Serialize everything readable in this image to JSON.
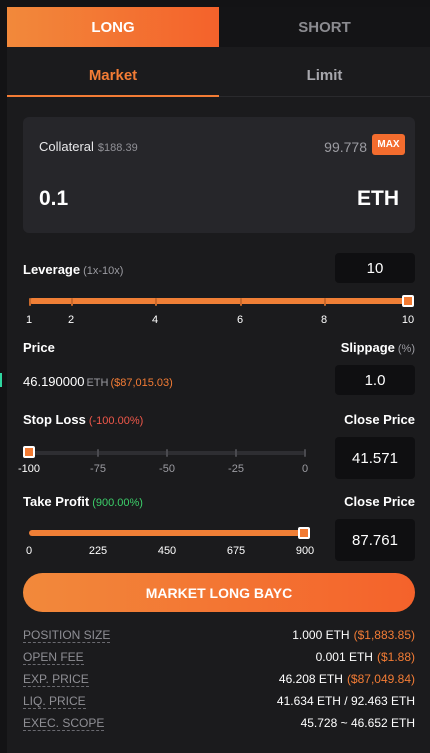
{
  "side_tabs": {
    "long": "LONG",
    "short": "SHORT"
  },
  "order_tabs": {
    "market": "Market",
    "limit": "Limit"
  },
  "collateral": {
    "label": "Collateral",
    "usd": "$188.39",
    "balance": "99.778",
    "max_label": "MAX",
    "amount": "0.1",
    "token": "ETH"
  },
  "leverage": {
    "label": "Leverage",
    "range": "(1x-10x)",
    "value": "10",
    "ticks": [
      "1",
      "2",
      "4",
      "6",
      "8",
      "10"
    ]
  },
  "price": {
    "label": "Price",
    "value": "46.190000",
    "unit": "ETH",
    "usd": "($87,015.03)"
  },
  "slippage": {
    "label": "Slippage",
    "unit": "(%)",
    "value": "1.0"
  },
  "stop_loss": {
    "label": "Stop Loss",
    "pct": "(-100.00%)",
    "ticks": [
      "-100",
      "-75",
      "-50",
      "-25",
      "0"
    ],
    "close_label": "Close Price",
    "close_value": "41.571"
  },
  "take_profit": {
    "label": "Take Profit",
    "pct": "(900.00%)",
    "ticks": [
      "0",
      "225",
      "450",
      "675",
      "900"
    ],
    "close_label": "Close Price",
    "close_value": "87.761"
  },
  "cta_label": "MARKET LONG BAYC",
  "info": [
    {
      "key": "POSITION SIZE",
      "value": "1.000 ETH",
      "usd": "($1,883.85)"
    },
    {
      "key": "OPEN FEE",
      "value": "0.001 ETH",
      "usd": "($1.88)"
    },
    {
      "key": "EXP. PRICE",
      "value": "46.208 ETH",
      "usd": "($87,049.84)"
    },
    {
      "key": "LIQ. PRICE",
      "value": "41.634 ETH / 92.463 ETH",
      "usd": ""
    },
    {
      "key": "EXEC. SCOPE",
      "value": "45.728 ~ 46.652 ETH",
      "usd": ""
    }
  ],
  "colors": {
    "accent": "#f37c35",
    "loss": "#f0584a",
    "profit": "#3ccf6a"
  }
}
